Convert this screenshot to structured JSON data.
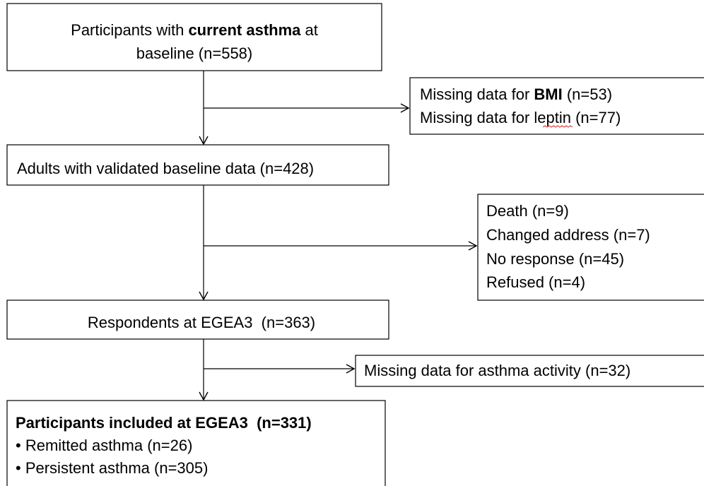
{
  "boxes": [
    {
      "lines": [
        [
          "Participants with ",
          "current asthma",
          " at"
        ],
        [
          "baseline (n=558)"
        ]
      ]
    },
    {
      "lines": [
        [
          "Missing data for ",
          "BMI",
          " (n=53)"
        ],
        [
          "Missing data for leptin (n=77)"
        ]
      ]
    },
    {
      "lines": [
        [
          "Adults with validated baseline data (n=428)"
        ]
      ]
    },
    {
      "lines": [
        [
          "Death (n=9)"
        ],
        [
          "Changed address (n=7)"
        ],
        [
          "No response (n=45)"
        ],
        [
          "Refused (n=4)"
        ]
      ]
    },
    {
      "lines": [
        [
          "Respondents at EGEA3  (n=363)"
        ]
      ]
    },
    {
      "lines": [
        [
          "Missing data for asthma activity (n=32)"
        ]
      ]
    },
    {
      "lines": [
        [
          "Participants included at EGEA3  (n=331)"
        ],
        [
          "• Remitted asthma (n=26)"
        ],
        [
          "• Persistent asthma (n=305)"
        ]
      ]
    }
  ]
}
